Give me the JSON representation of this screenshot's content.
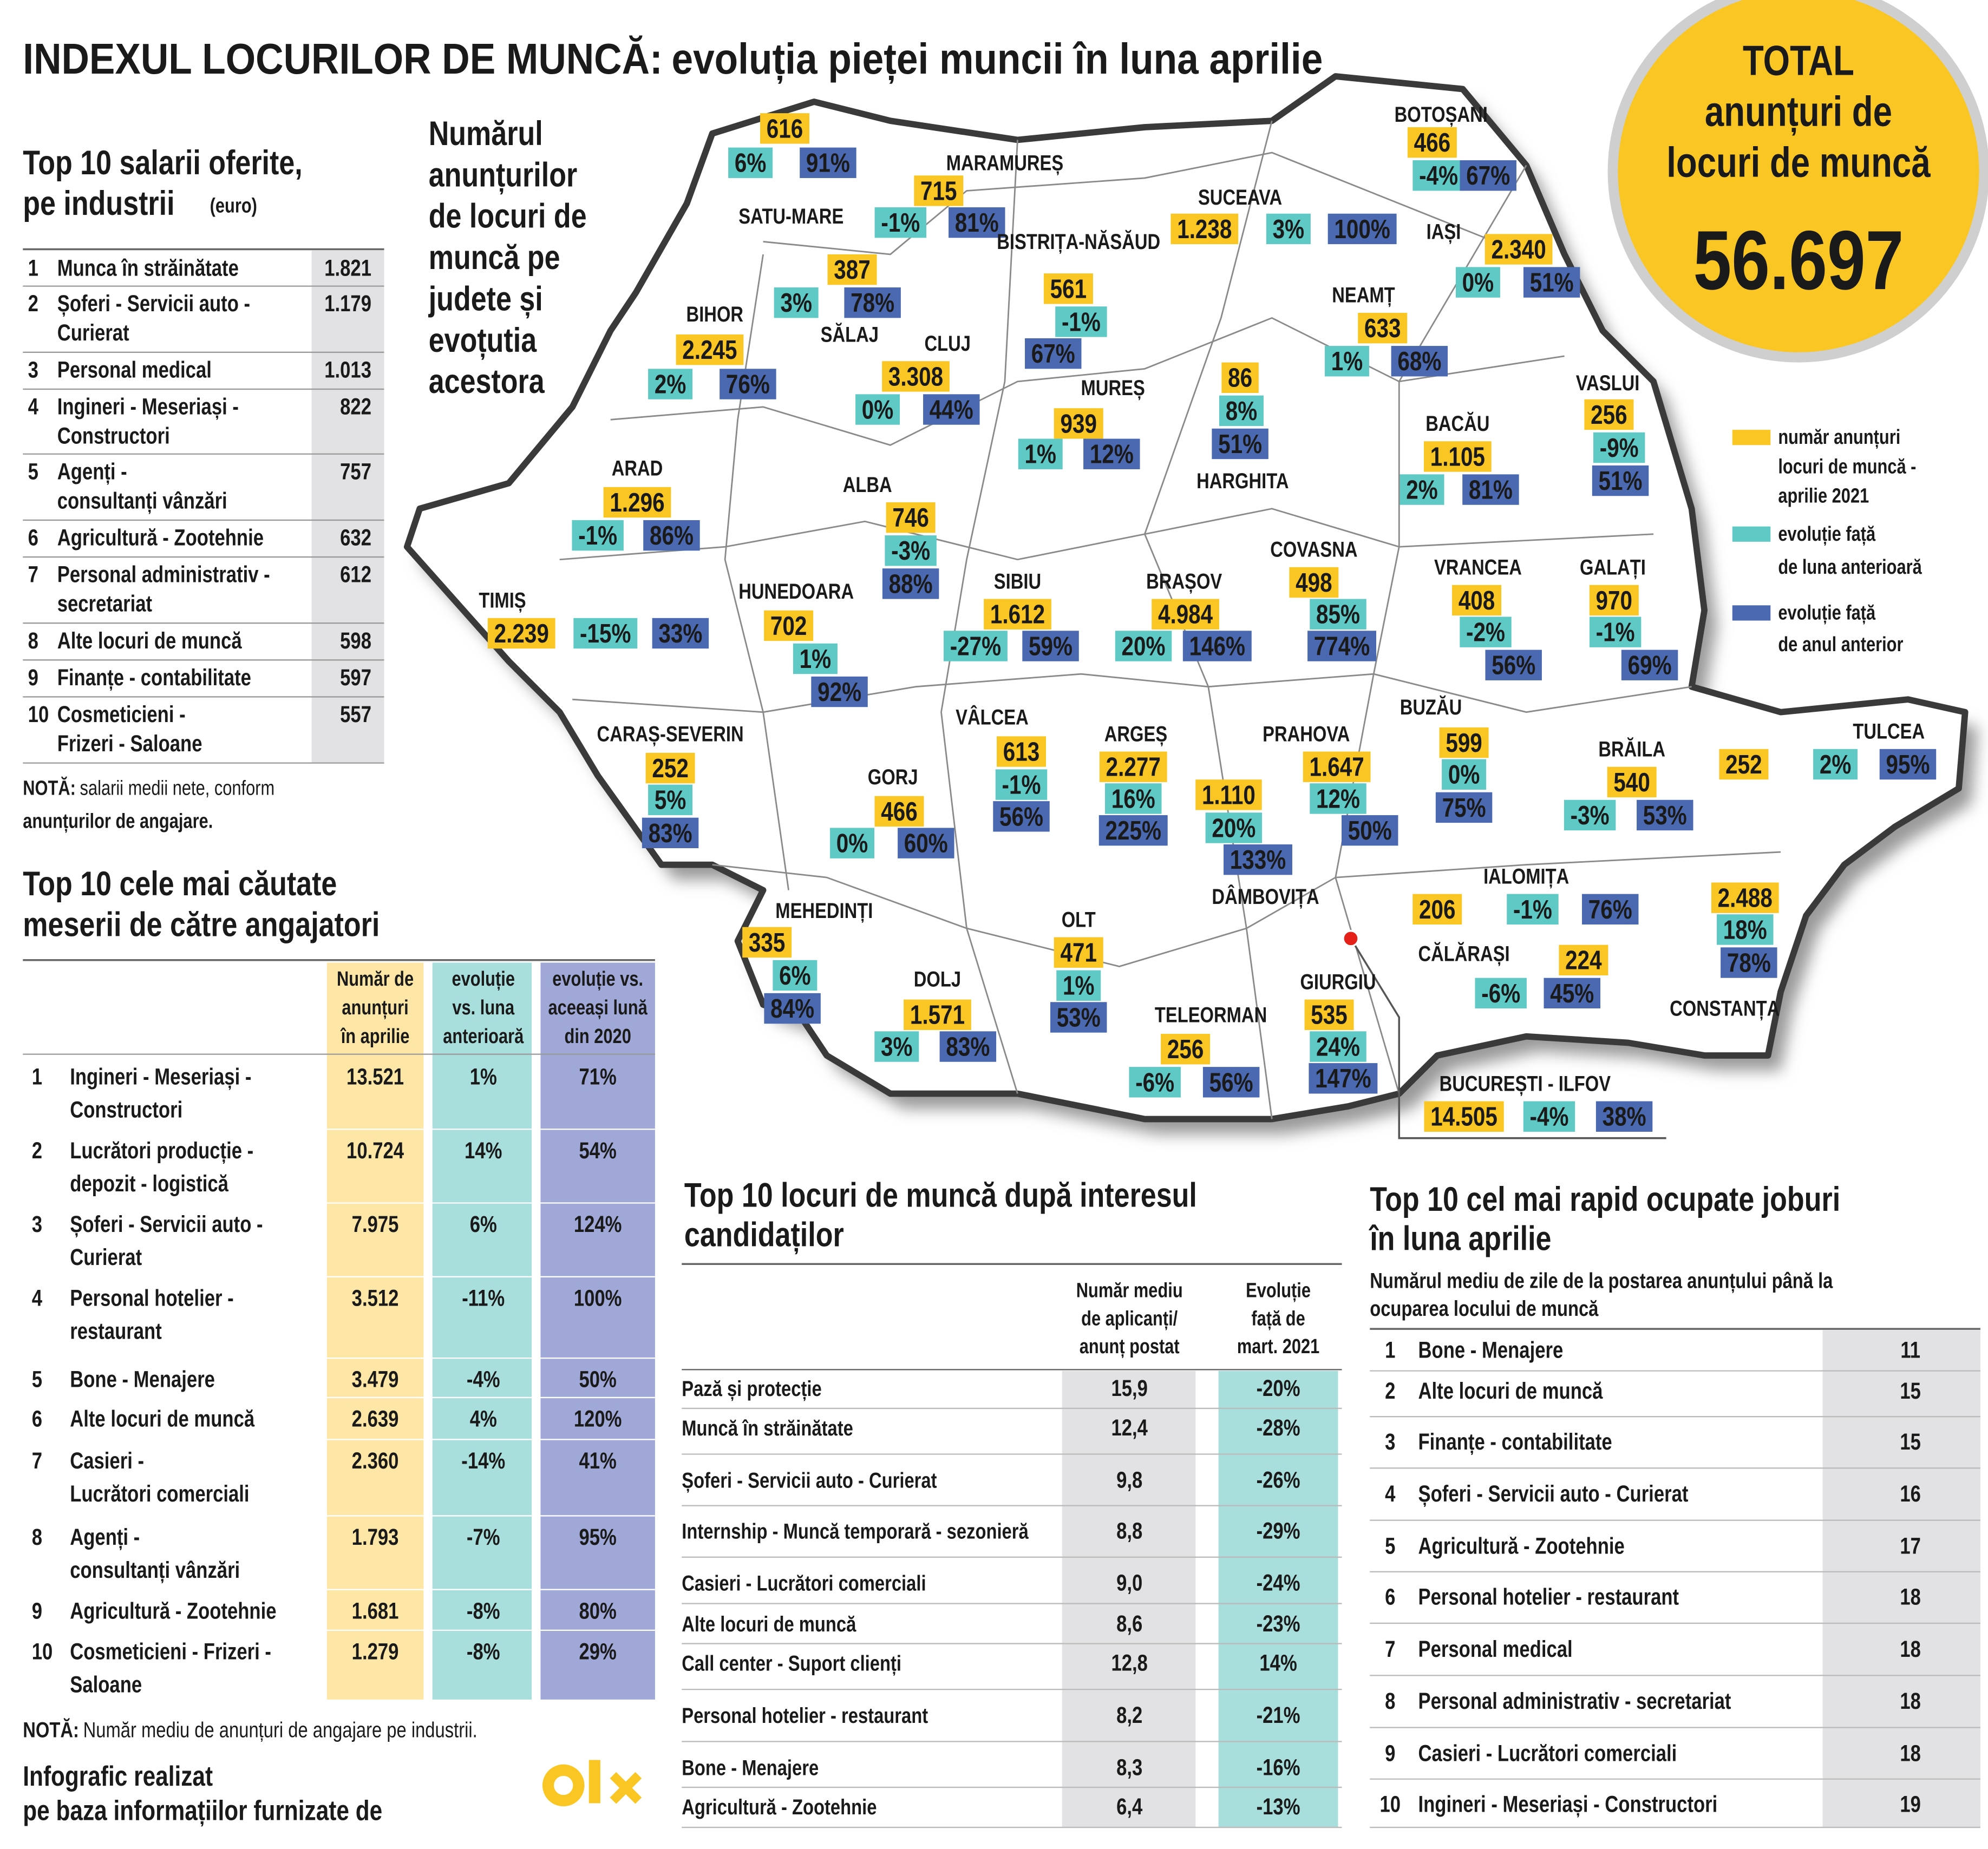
{
  "title": {
    "bold": "INDEXUL LOCURILOR DE MUNCĂ:",
    "rest": "evoluția pieței muncii în luna aprilie"
  },
  "salaries": {
    "title": [
      "Top 10 salarii oferite,",
      "pe industrii"
    ],
    "unit": "(euro)",
    "rows": [
      {
        "rank": "1",
        "name": [
          "Munca în străinătate"
        ],
        "value": "1.821"
      },
      {
        "rank": "2",
        "name": [
          "Șoferi - Servicii auto -",
          "Curierat"
        ],
        "value": "1.179"
      },
      {
        "rank": "3",
        "name": [
          "Personal medical"
        ],
        "value": "1.013"
      },
      {
        "rank": "4",
        "name": [
          "Ingineri - Meseriași -",
          "Constructori"
        ],
        "value": 822
      },
      {
        "rank": "5",
        "name": [
          "Agenți -",
          "consultanți vânzări"
        ],
        "value": 757
      },
      {
        "rank": "6",
        "name": [
          "Agricultură - Zootehnie"
        ],
        "value": 632
      },
      {
        "rank": "7",
        "name": [
          "Personal administrativ -",
          "secretariat"
        ],
        "value": 612
      },
      {
        "rank": "8",
        "name": [
          "Alte locuri de muncă"
        ],
        "value": 598
      },
      {
        "rank": "9",
        "name": [
          "Finanțe - contabilitate"
        ],
        "value": 597
      },
      {
        "rank": "10",
        "name": [
          "Cosmeticieni -",
          "Frizeri - Saloane"
        ],
        "value": 557
      }
    ],
    "note_label": "NOTĂ:",
    "note": [
      "salarii medii nete, conform",
      "anunțurilor de angajare."
    ]
  },
  "map": {
    "intro": [
      "Numărul",
      "anunțurilor",
      "de locuri de",
      "muncă pe",
      "judete și",
      "evoțutia",
      "acestora"
    ],
    "counties": [
      {
        "name": "SATU-MARE",
        "count": "616",
        "month": "6%",
        "year": "91%"
      },
      {
        "name": "MARAMUREȘ",
        "count": "715",
        "month": "-1%",
        "year": "81%"
      },
      {
        "name": "SĂLAJ",
        "count": "387",
        "month": "3%",
        "year": "78%"
      },
      {
        "name": "BIHOR",
        "count": "2.245",
        "month": "2%",
        "year": "76%"
      },
      {
        "name": "BISTRIȚA-NĂSĂUD",
        "count": "561",
        "month": "-1%",
        "year": "67%"
      },
      {
        "name": "CLUJ",
        "count": "3.308",
        "month": "0%",
        "year": "44%"
      },
      {
        "name": "SUCEAVA",
        "count": "1.238",
        "month": "3%",
        "year": "100%"
      },
      {
        "name": "BOTOȘANI",
        "count": "466",
        "month": "-4%",
        "year": "67%"
      },
      {
        "name": "IAȘI",
        "count": "2.340",
        "month": "0%",
        "year": "51%"
      },
      {
        "name": "NEAMȚ",
        "count": "633",
        "month": "1%",
        "year": "68%"
      },
      {
        "name": "MUREȘ",
        "count": "939",
        "month": "1%",
        "year": "12%"
      },
      {
        "name": "HARGHITA",
        "count": "86",
        "month": "8%",
        "year": "51%"
      },
      {
        "name": "BACĂU",
        "count": "1.105",
        "month": "2%",
        "year": "81%"
      },
      {
        "name": "VASLUI",
        "count": "256",
        "month": "-9%",
        "year": "51%"
      },
      {
        "name": "ARAD",
        "count": "1.296",
        "month": "-1%",
        "year": "86%"
      },
      {
        "name": "ALBA",
        "count": "746",
        "month": "-3%",
        "year": "88%"
      },
      {
        "name": "TIMIȘ",
        "count": "2.239",
        "month": "-15%",
        "year": "33%"
      },
      {
        "name": "HUNEDOARA",
        "count": "702",
        "month": "1%",
        "year": "92%"
      },
      {
        "name": "SIBIU",
        "count": "1.612",
        "month": "-27%",
        "year": "59%"
      },
      {
        "name": "BRAȘOV",
        "count": "4.984",
        "month": "20%",
        "year": "146%"
      },
      {
        "name": "COVASNA",
        "count": "498",
        "month": "85%",
        "year": "774%"
      },
      {
        "name": "VRANCEA",
        "count": "408",
        "month": "-2%",
        "year": "56%"
      },
      {
        "name": "GALAȚI",
        "count": "970",
        "month": "-1%",
        "year": "69%"
      },
      {
        "name": "CARAȘ-SEVERIN",
        "count": "252",
        "month": "5%",
        "year": "83%"
      },
      {
        "name": "VÂLCEA",
        "count": "613",
        "month": "-1%",
        "year": "56%"
      },
      {
        "name": "GORJ",
        "count": "466",
        "month": "0%",
        "year": "60%"
      },
      {
        "name": "ARGEȘ",
        "count": "2.277",
        "month": "16%",
        "year": "225%"
      },
      {
        "name": "PRAHOVA",
        "count": "1.647",
        "month": "12%",
        "year": "50%"
      },
      {
        "name": "DÂMBOVIȚA",
        "count": "1.110",
        "month": "20%",
        "year": "133%"
      },
      {
        "name": "BUZĂU",
        "count": "599",
        "month": "0%",
        "year": "75%"
      },
      {
        "name": "BRĂILA",
        "count": "540",
        "month": "-3%",
        "year": "53%"
      },
      {
        "name": "TULCEA",
        "count": "252",
        "month": "2%",
        "year": "95%"
      },
      {
        "name": "MEHEDINȚI",
        "count": "335",
        "month": "6%",
        "year": "84%"
      },
      {
        "name": "OLT",
        "count": "471",
        "month": "1%",
        "year": "53%"
      },
      {
        "name": "DOLJ",
        "count": "1.571",
        "month": "3%",
        "year": "83%"
      },
      {
        "name": "TELEORMAN",
        "count": "256",
        "month": "-6%",
        "year": "56%"
      },
      {
        "name": "GIURGIU",
        "count": "535",
        "month": "24%",
        "year": "147%"
      },
      {
        "name": "IALOMIȚA",
        "count": "206",
        "month": "-1%",
        "year": "76%"
      },
      {
        "name": "CĂLĂRAȘI",
        "count": "224",
        "month": "-6%",
        "year": "45%"
      },
      {
        "name": "CONSTANȚA",
        "count": "2.488",
        "month": "18%",
        "year": "78%"
      },
      {
        "name": "BUCUREȘTI - ILFOV",
        "count": "14.505",
        "month": "-4%",
        "year": "38%"
      }
    ],
    "legend": [
      [
        "număr anunțuri",
        "locuri de muncă -",
        "aprilie 2021"
      ],
      [
        "evoluție față",
        "de luna anterioară"
      ],
      [
        "evoluție față",
        "de anul anterior"
      ]
    ]
  },
  "total": {
    "lines": [
      "TOTAL",
      "anunțuri de",
      "locuri de muncă"
    ],
    "value": "56.697"
  },
  "searched": {
    "title": [
      "Top 10 cele mai căutate",
      "meserii de către angajatori"
    ],
    "headers": [
      [
        "Număr de",
        "anunțuri",
        "în aprilie"
      ],
      [
        "evoluție",
        "vs. luna",
        "anterioară"
      ],
      [
        "evoluție vs.",
        "aceeași lună",
        "din 2020"
      ]
    ],
    "rows": [
      {
        "rank": "1",
        "name": [
          "Ingineri - Meseriași -",
          "Constructori"
        ],
        "count": "13.521",
        "month": "1%",
        "year": "71%"
      },
      {
        "rank": "2",
        "name": [
          "Lucrători producție -",
          "depozit - logistică"
        ],
        "count": "10.724",
        "month": "14%",
        "year": "54%"
      },
      {
        "rank": "3",
        "name": [
          "Șoferi - Servicii auto -",
          "Curierat"
        ],
        "count": "7.975",
        "month": "6%",
        "year": "124%"
      },
      {
        "rank": "4",
        "name": [
          "Personal hotelier -",
          "restaurant"
        ],
        "count": "3.512",
        "month": "-11%",
        "year": "100%"
      },
      {
        "rank": "5",
        "name": [
          "Bone - Menajere"
        ],
        "count": "3.479",
        "month": "-4%",
        "year": "50%"
      },
      {
        "rank": "6",
        "name": [
          "Alte locuri de muncă"
        ],
        "count": "2.639",
        "month": "4%",
        "year": "120%"
      },
      {
        "rank": "7",
        "name": [
          "Casieri -",
          "Lucrători comerciali"
        ],
        "count": "2.360",
        "month": "-14%",
        "year": "41%"
      },
      {
        "rank": "8",
        "name": [
          "Agenți -",
          "consultanți vânzări"
        ],
        "count": "1.793",
        "month": "-7%",
        "year": "95%"
      },
      {
        "rank": "9",
        "name": [
          "Agricultură - Zootehnie"
        ],
        "count": "1.681",
        "month": "-8%",
        "year": "80%"
      },
      {
        "rank": "10",
        "name": [
          "Cosmeticieni - Frizeri -",
          "Saloane"
        ],
        "count": "1.279",
        "month": "-8%",
        "year": "29%"
      }
    ],
    "note_label": "NOTĂ:",
    "note": "Număr mediu de anunțuri de angajare pe industrii."
  },
  "interest": {
    "title": [
      "Top 10 locuri de muncă după interesul",
      "candidaților"
    ],
    "headers": [
      [
        "Număr mediu",
        "de aplicanți/",
        "anunț postat"
      ],
      [
        "Evoluție",
        "față de",
        "mart. 2021"
      ]
    ],
    "rows": [
      {
        "name": "Pază și protecție",
        "avg": "15,9",
        "change": "-20%"
      },
      {
        "name": "Muncă în străinătate",
        "avg": "12,4",
        "change": "-28%"
      },
      {
        "name": "Șoferi - Servicii auto - Curierat",
        "avg": "9,8",
        "change": "-26%"
      },
      {
        "name": "Internship - Muncă temporară - sezonieră",
        "avg": "8,8",
        "change": "-29%"
      },
      {
        "name": "Casieri - Lucrători comerciali",
        "avg": "9,0",
        "change": "-24%"
      },
      {
        "name": "Alte locuri de muncă",
        "avg": "8,6",
        "change": "-23%"
      },
      {
        "name": "Call center - Suport clienți",
        "avg": "12,8",
        "change": "14%"
      },
      {
        "name": "Personal hotelier - restaurant",
        "avg": "8,2",
        "change": "-21%"
      },
      {
        "name": "Bone - Menajere",
        "avg": "8,3",
        "change": "-16%"
      },
      {
        "name": "Agricultură - Zootehnie",
        "avg": "6,4",
        "change": "-13%"
      }
    ]
  },
  "fastest": {
    "title": [
      "Top 10 cel mai rapid ocupate joburi",
      "în luna aprilie"
    ],
    "subtitle": [
      "Numărul mediu de zile de la postarea anunțului până la",
      "ocuparea locului de muncă"
    ],
    "rows": [
      {
        "rank": "1",
        "name": "Bone - Menajere",
        "days": 11
      },
      {
        "rank": "2",
        "name": "Alte locuri de muncă",
        "days": 15
      },
      {
        "rank": "3",
        "name": "Finanțe - contabilitate",
        "days": 15
      },
      {
        "rank": "4",
        "name": "Șoferi - Servicii auto - Curierat",
        "days": 16
      },
      {
        "rank": "5",
        "name": "Agricultură - Zootehnie",
        "days": 17
      },
      {
        "rank": "6",
        "name": "Personal hotelier - restaurant",
        "days": 18
      },
      {
        "rank": "7",
        "name": "Personal medical",
        "days": 18
      },
      {
        "rank": "8",
        "name": "Personal administrativ - secretariat",
        "days": 18
      },
      {
        "rank": "9",
        "name": "Casieri -  Lucrători comerciali",
        "days": 18
      },
      {
        "rank": "10",
        "name": "Ingineri - Meseriași - Constructori",
        "days": 19
      }
    ]
  },
  "credit": [
    "Infografic realizat",
    "pe baza informațiilor furnizate de"
  ]
}
